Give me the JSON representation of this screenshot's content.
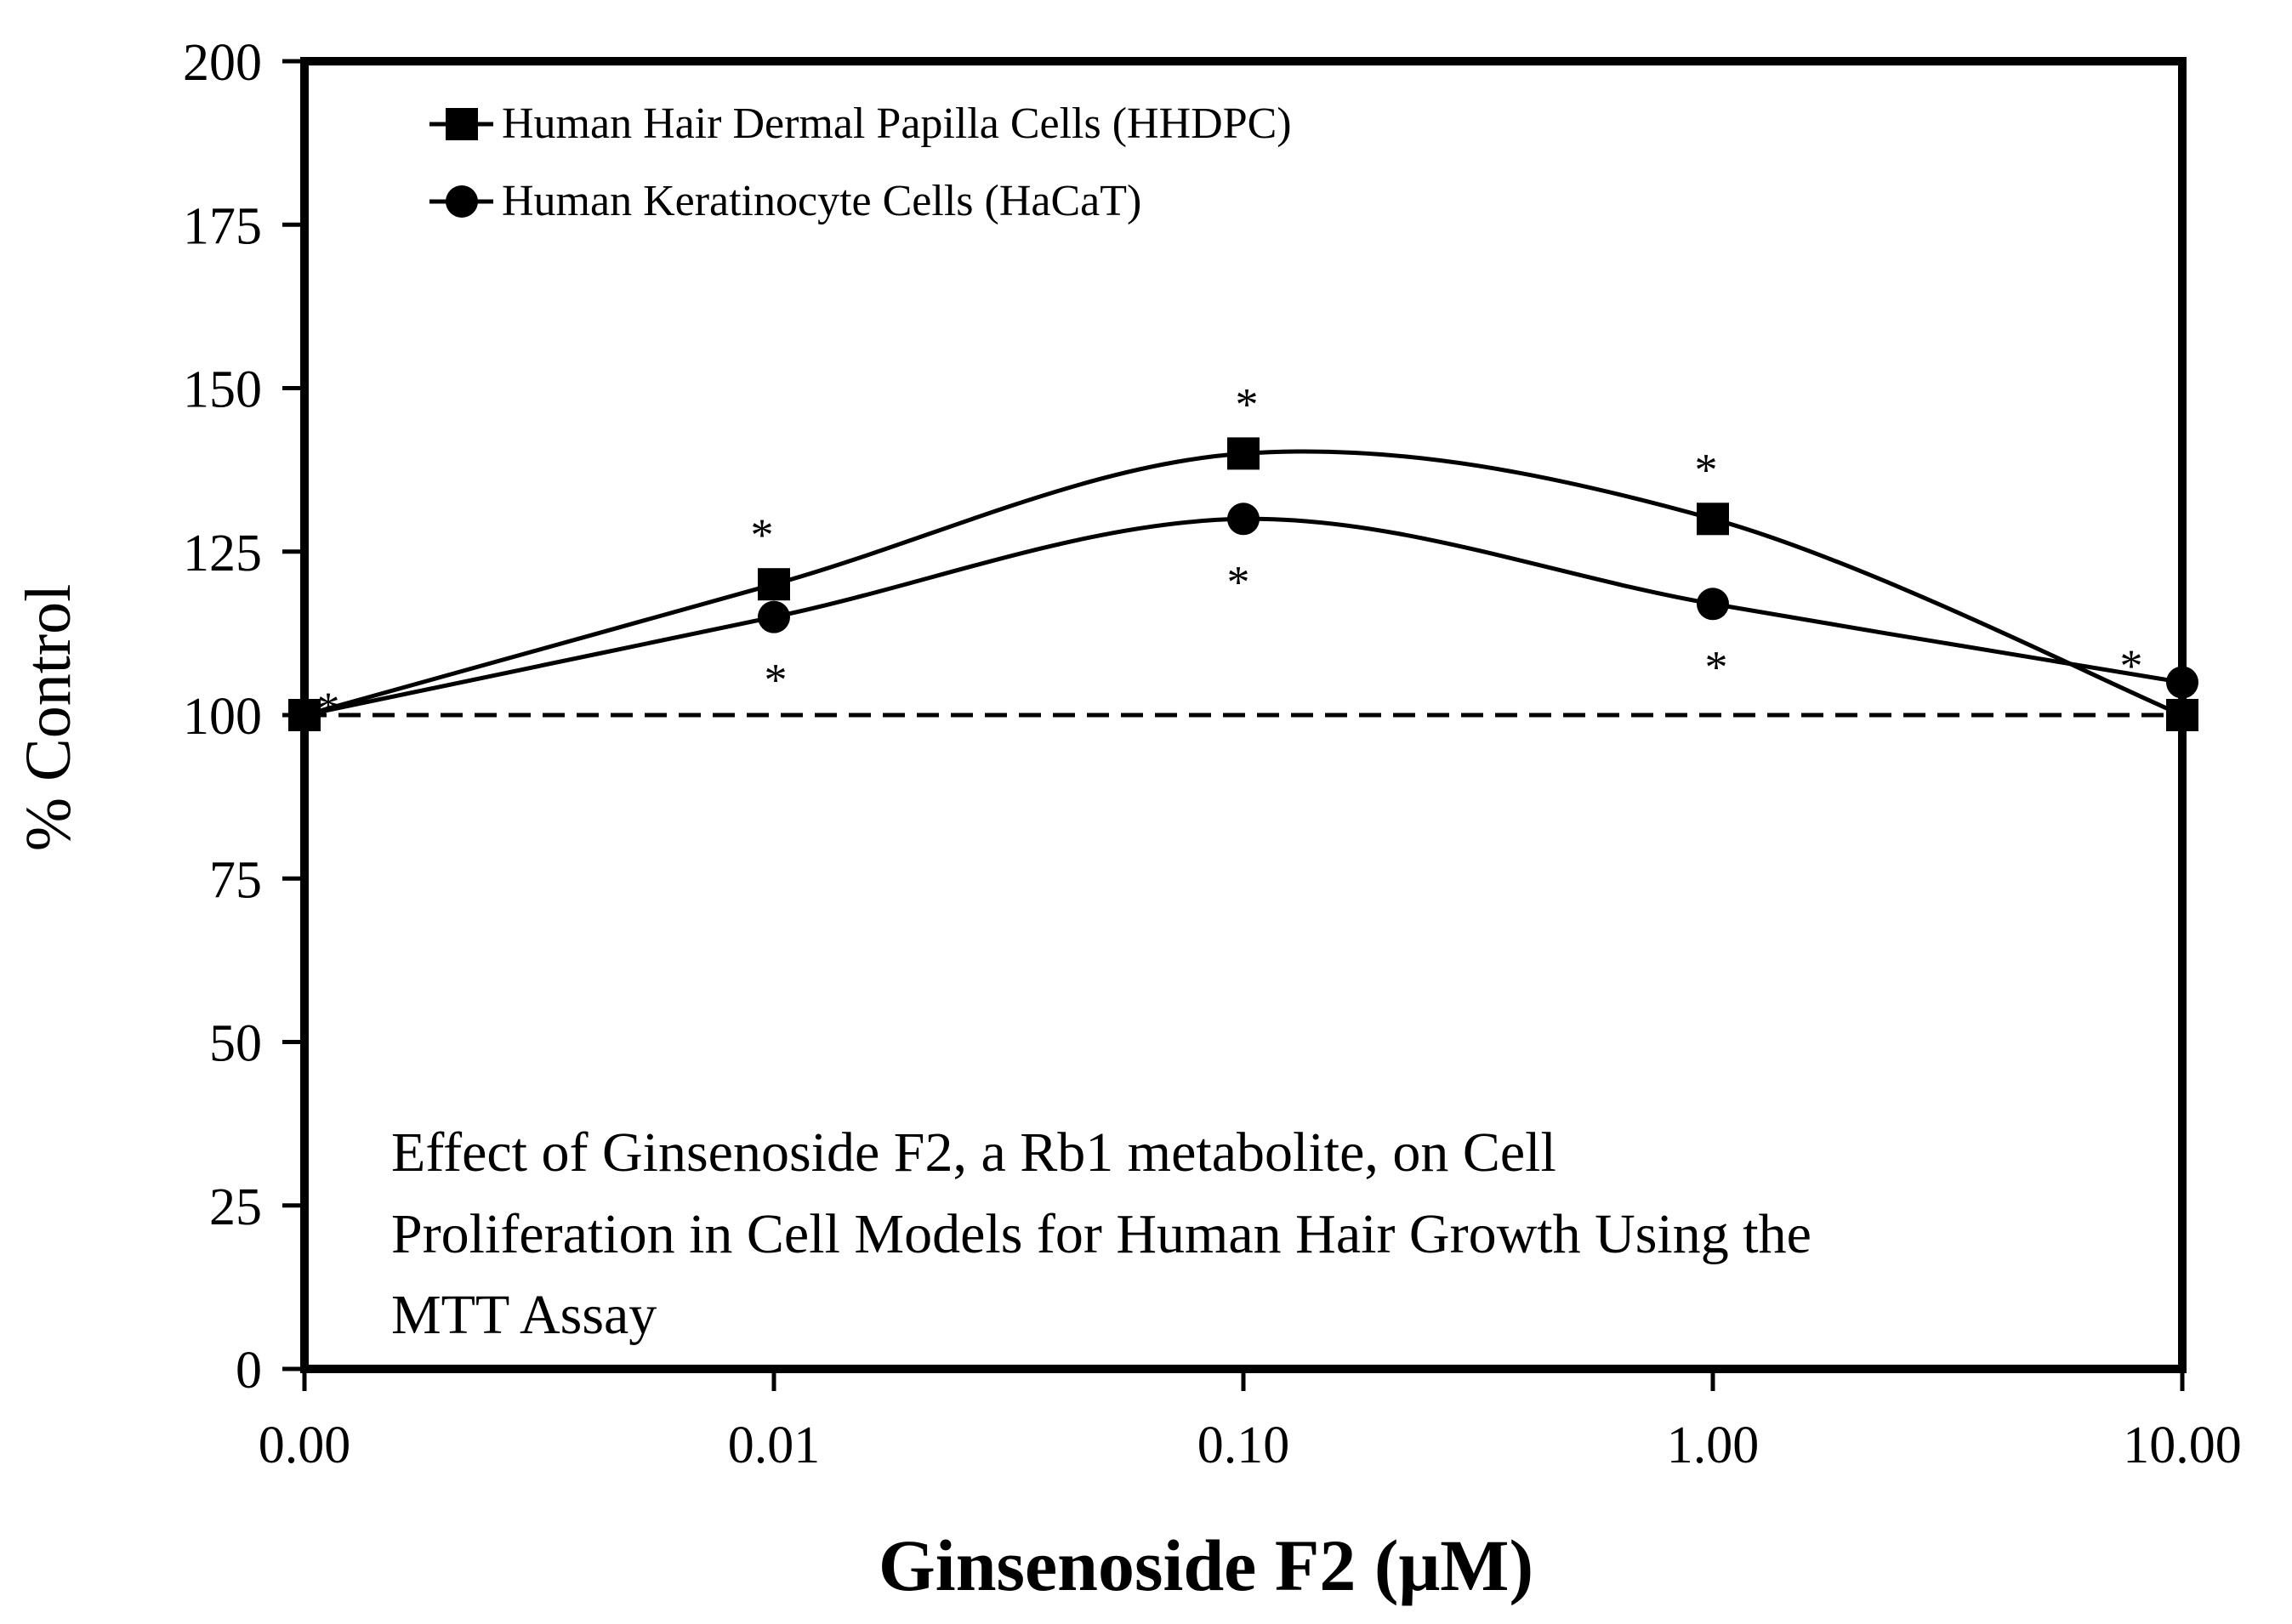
{
  "chart_data": {
    "type": "line",
    "title": "Effect of Ginsenoside F2, a Rb1 metabolite, on Cell Proliferation in Cell Models for Human Hair Growth Using the MTT Assay",
    "title_lines": [
      "Effect of Ginsenoside F2, a Rb1 metabolite, on Cell",
      "Proliferation in Cell Models for Human Hair Growth Using the",
      "MTT Assay"
    ],
    "xlabel": "Ginsenoside F2 (μM)",
    "ylabel": "% Control",
    "categories": [
      "0.00",
      "0.01",
      "0.10",
      "1.00",
      "10.00"
    ],
    "ylim": [
      0,
      200
    ],
    "yticks": [
      "0",
      "25",
      "50",
      "75",
      "100",
      "125",
      "150",
      "175",
      "200"
    ],
    "ytick_values": [
      0,
      25,
      50,
      75,
      100,
      125,
      150,
      175,
      200
    ],
    "reference_line": {
      "y": 100,
      "style": "dashed"
    },
    "legend_position": "top-left",
    "grid": false,
    "significance_marker": "*",
    "series": [
      {
        "name": "Human Hair Dermal Papilla Cells (HHDPC)",
        "marker": "square",
        "color": "#000000",
        "values": [
          100,
          120,
          140,
          130,
          100
        ],
        "significant": [
          true,
          true,
          true,
          true,
          true
        ]
      },
      {
        "name": "Human Keratinocyte Cells (HaCaT)",
        "marker": "circle",
        "color": "#000000",
        "values": [
          100,
          115,
          130,
          117,
          105
        ],
        "significant": [
          false,
          true,
          true,
          true,
          false
        ]
      }
    ]
  }
}
